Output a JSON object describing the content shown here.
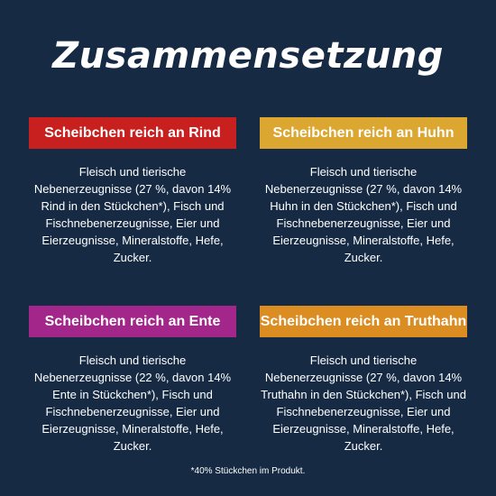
{
  "title": "Zusammensetzung",
  "colors": {
    "background": "#162a44",
    "rind": "#c8201f",
    "huhn": "#dca730",
    "ente": "#a3268a",
    "truthahn": "#dc8d22"
  },
  "cards": [
    {
      "heading": "Scheibchen reich an Rind",
      "lines": [
        "Fleisch und tierische",
        "Nebenerzeugnisse (27 %, davon 14%",
        "Rind in den Stückchen*), Fisch und",
        "Fischnebenerzeugnisse, Eier und",
        "Eierzeugnisse, Mineralstoffe, Hefe,",
        "Zucker."
      ]
    },
    {
      "heading": "Scheibchen reich an Huhn",
      "lines": [
        "Fleisch und tierische",
        "Nebenerzeugnisse (27 %, davon 14%",
        "Huhn in den Stückchen*), Fisch und",
        "Fischnebenerzeugnisse, Eier und",
        "Eierzeugnisse, Mineralstoffe, Hefe,",
        "Zucker."
      ]
    },
    {
      "heading": "Scheibchen reich an Ente",
      "lines": [
        "Fleisch und tierische",
        "Nebenerzeugnisse (22 %, davon 14%",
        "Ente in Stückchen*), Fisch und",
        "Fischnebenerzeugnisse, Eier und",
        "Eierzeugnisse, Mineralstoffe, Hefe,",
        "Zucker."
      ]
    },
    {
      "heading": "Scheibchen reich an Truthahn",
      "lines": [
        "Fleisch und tierische",
        "Nebenerzeugnisse (27 %, davon 14%",
        "Truthahn in den Stückchen*), Fisch und",
        "Fischnebenerzeugnisse, Eier und",
        "Eierzeugnisse, Mineralstoffe, Hefe,",
        "Zucker."
      ]
    }
  ],
  "footnote": "*40% Stückchen im Produkt."
}
